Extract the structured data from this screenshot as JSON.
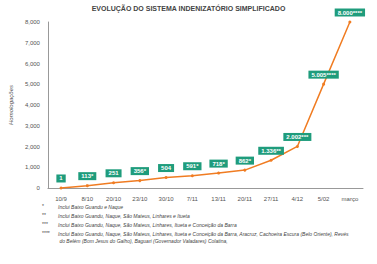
{
  "chart_data": {
    "type": "line",
    "title": "EVOLUÇÃO DO SISTEMA INDENIZATÓRIO SIMPLIFICADO",
    "y_label": "Homologações",
    "categories": [
      "10/9",
      "8/10",
      "20/10",
      "23/10",
      "30/10",
      "7/11",
      "13/11",
      "20/11",
      "27/11",
      "4/12",
      "5/02",
      "março"
    ],
    "values": [
      1,
      113,
      251,
      356,
      504,
      591,
      718,
      862,
      1336,
      2002,
      5005,
      8000
    ],
    "value_labels": [
      "1",
      "113*",
      "251",
      "356*",
      "504",
      "591*",
      "718*",
      "862*",
      "1.336**",
      "2.002***",
      "5.005****",
      "8.000****"
    ],
    "color": "#f07c22",
    "ylim": [
      0,
      8000
    ],
    "yticks": [
      0,
      1000,
      2000,
      3000,
      4000,
      5000,
      6000,
      7000,
      8000
    ],
    "grid": false,
    "data_labels": true,
    "marker": "circle",
    "annotations": [
      {
        "marker": "*",
        "text": "Inclui Baixo Guandu e Naque"
      },
      {
        "marker": "**",
        "text": "Inclui Baixo Guandu, Naque, São Mateus, Linhares e Itueta"
      },
      {
        "marker": "***",
        "text": "Inclui Baixo Guandu, Naque, São Mateus, Linhares, Itueta e Conceição da Barra"
      },
      {
        "marker": "****",
        "text": "Inclui Baixo Guandu, Naque, São Mateus, Linhares, Itueta e Conceição da Barra, Aracruz, Cachoeira Escura (Belo Oriente), Revés do Belém (Bom Jesus do Galho), Baguari (Governador Valadares) Colatina,"
      }
    ]
  }
}
